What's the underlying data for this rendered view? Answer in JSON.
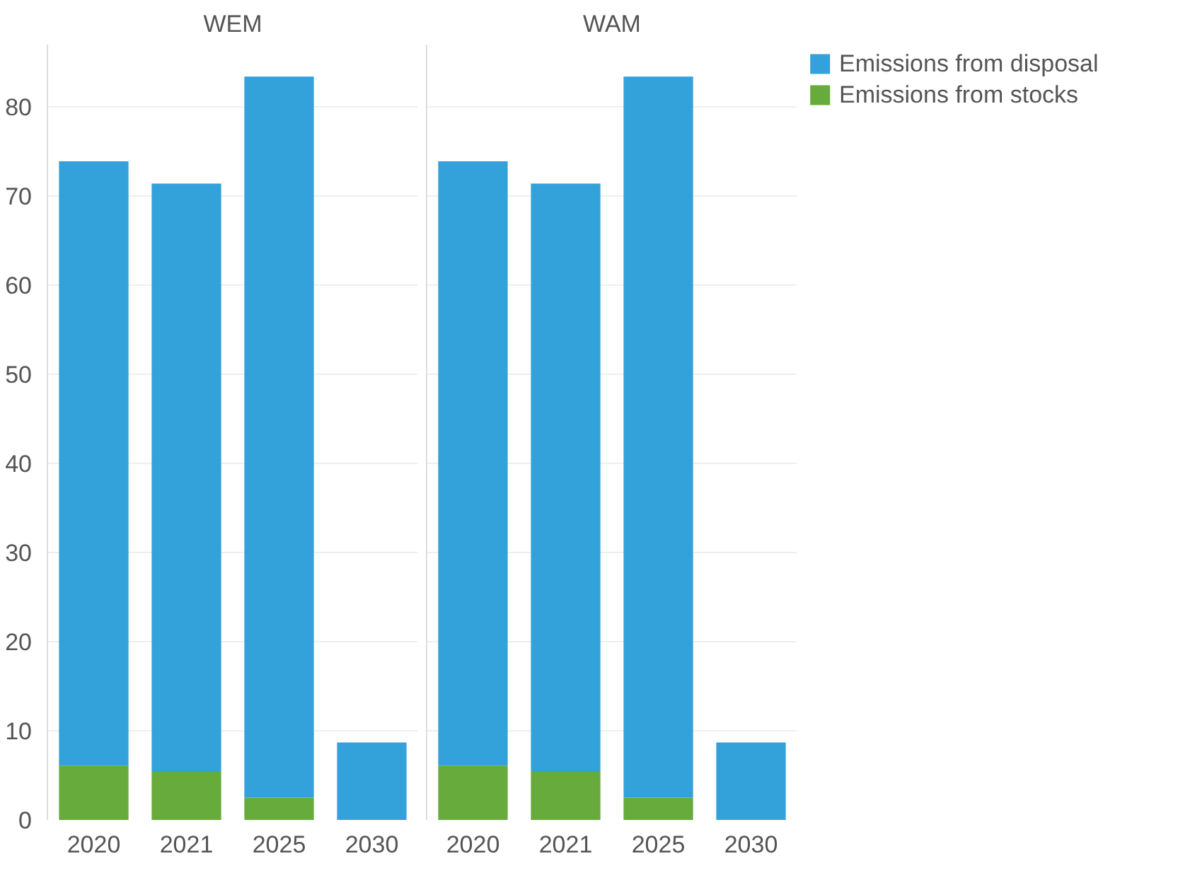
{
  "chart_data": [
    {
      "type": "bar",
      "title": "WEM",
      "stacked": true,
      "categories": [
        "2020",
        "2021",
        "2025",
        "2030"
      ],
      "series": [
        {
          "color": "#66ab3b",
          "values": [
            6.1,
            5.4,
            2.5,
            0
          ]
        },
        {
          "color": "#33a1da",
          "values": [
            67.8,
            66.0,
            80.9,
            8.7
          ]
        }
      ],
      "ylim": [
        0,
        87
      ],
      "yticks": [
        0,
        10,
        20,
        30,
        40,
        50,
        60,
        70,
        80
      ],
      "grid": "y"
    },
    {
      "type": "bar",
      "title": "WAM",
      "stacked": true,
      "categories": [
        "2020",
        "2021",
        "2025",
        "2030"
      ],
      "series": [
        {
          "name": "Emissions from stocks",
          "color": "#66ab3b",
          "values": [
            6.1,
            5.4,
            2.5,
            0
          ]
        },
        {
          "name": "Emissions from disposal",
          "color": "#33a1da",
          "values": [
            67.8,
            66.0,
            80.9,
            8.7
          ]
        }
      ],
      "ylim": [
        0,
        87
      ],
      "yticks": [
        0,
        10,
        20,
        30,
        40,
        50,
        60,
        70,
        80
      ],
      "grid": "y",
      "legend": "top right",
      "tick_labels": "x"
    }
  ]
}
